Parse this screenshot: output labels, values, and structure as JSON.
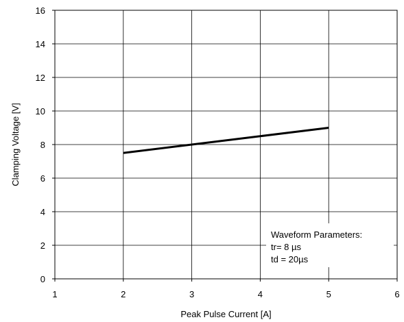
{
  "chart_data": {
    "type": "line",
    "title": "",
    "xlabel": "Peak Pulse Current [A]",
    "ylabel": "Clamping Voltage [V]",
    "xlim": [
      1,
      6
    ],
    "ylim": [
      0,
      16
    ],
    "xticks": [
      1,
      2,
      3,
      4,
      5,
      6
    ],
    "yticks": [
      0,
      2,
      4,
      6,
      8,
      10,
      12,
      14,
      16
    ],
    "grid": true,
    "series": [
      {
        "x": [
          2,
          3,
          4,
          5
        ],
        "y": [
          7.5,
          8.0,
          8.5,
          9.0
        ],
        "color": "#000000"
      }
    ],
    "annotation": {
      "lines": [
        "Waveform Parameters:",
        "tr= 8 µs",
        "td = 20µs"
      ]
    }
  }
}
